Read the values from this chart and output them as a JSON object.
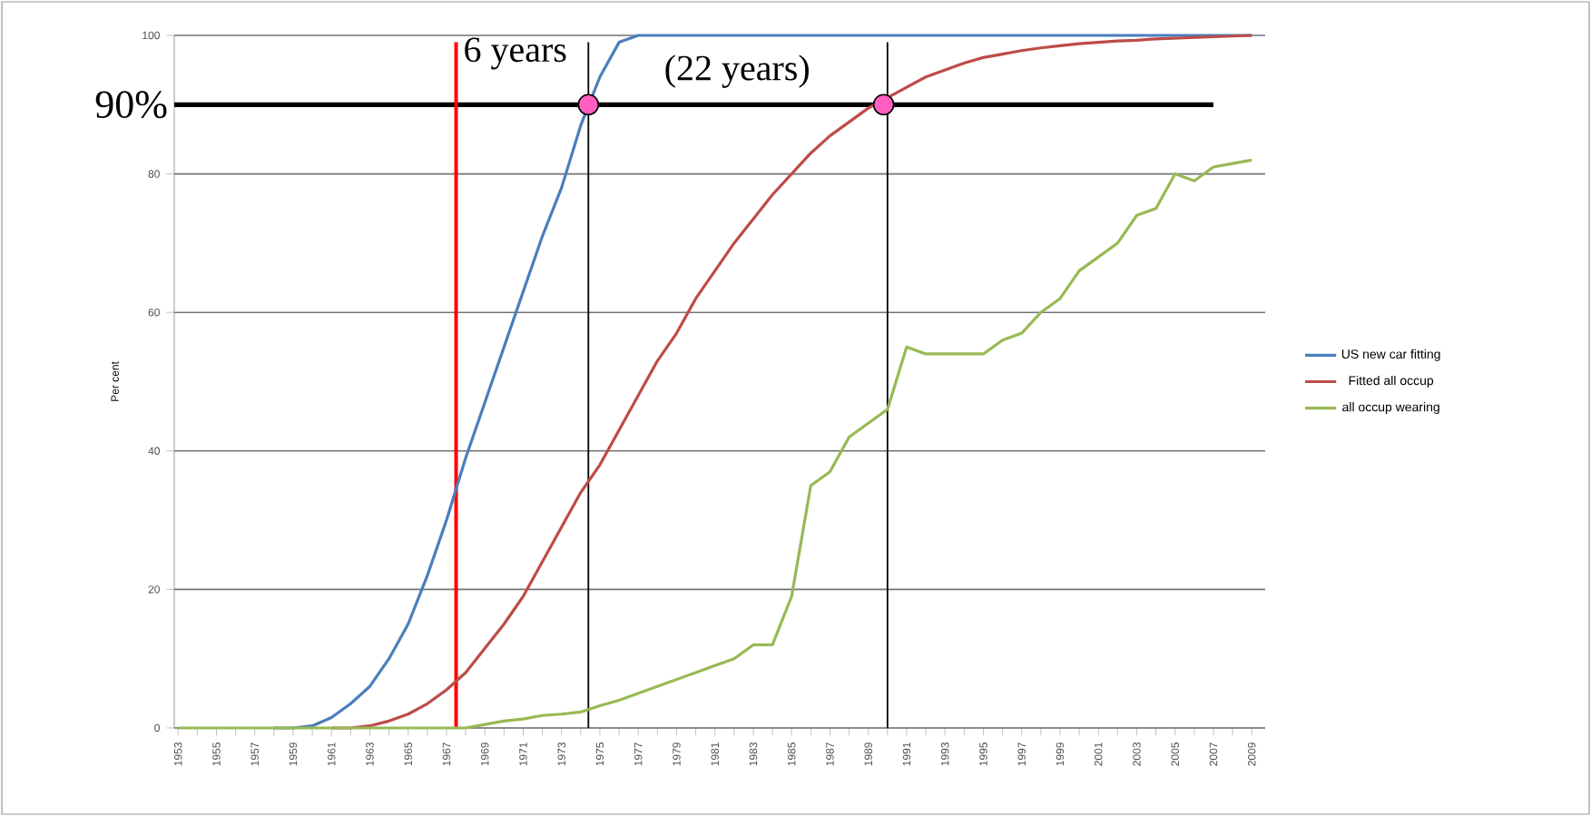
{
  "chart_data": {
    "type": "line",
    "ylabel": "Per cent",
    "x": [
      1953,
      1954,
      1955,
      1956,
      1957,
      1958,
      1959,
      1960,
      1961,
      1962,
      1963,
      1964,
      1965,
      1966,
      1967,
      1968,
      1969,
      1970,
      1971,
      1972,
      1973,
      1974,
      1975,
      1976,
      1977,
      1978,
      1979,
      1980,
      1981,
      1982,
      1983,
      1984,
      1985,
      1986,
      1987,
      1988,
      1989,
      1990,
      1991,
      1992,
      1993,
      1994,
      1995,
      1996,
      1997,
      1998,
      1999,
      2000,
      2001,
      2002,
      2003,
      2004,
      2005,
      2006,
      2007,
      2008,
      2009
    ],
    "series": [
      {
        "name": "US new car fitting",
        "color": "#4a7ebb",
        "values": [
          null,
          null,
          null,
          null,
          null,
          0,
          0,
          0.3,
          1.5,
          3.5,
          6,
          10,
          15,
          22,
          30,
          39,
          47,
          55,
          63,
          71,
          78,
          87,
          94,
          99,
          100,
          100,
          100,
          100,
          100,
          100,
          100,
          100,
          100,
          100,
          100,
          100,
          100,
          100,
          100,
          100,
          100,
          100,
          100,
          100,
          100,
          100,
          100,
          100,
          100,
          100,
          100,
          100,
          100,
          100,
          100,
          100,
          100
        ]
      },
      {
        "name": "Fitted all occup",
        "color": "#be4b48",
        "values": [
          null,
          null,
          null,
          null,
          null,
          null,
          null,
          null,
          0,
          0,
          0.3,
          1,
          2,
          3.5,
          5.5,
          8,
          11.5,
          15,
          19,
          24,
          29,
          34,
          38,
          43,
          48,
          53,
          57,
          62,
          66,
          70,
          73.5,
          77,
          80,
          83,
          85.5,
          87.5,
          89.5,
          91,
          92.5,
          94,
          95,
          96,
          96.8,
          97.3,
          97.8,
          98.2,
          98.5,
          98.8,
          99,
          99.2,
          99.3,
          99.5,
          99.6,
          99.7,
          99.8,
          99.9,
          100
        ]
      },
      {
        "name": "all occup wearing",
        "color": "#98b954",
        "values": [
          0,
          0,
          0,
          0,
          0,
          0,
          0,
          0,
          0,
          0,
          0,
          0,
          0,
          0,
          0,
          0,
          0.5,
          1,
          1.3,
          1.8,
          2,
          2.3,
          3.2,
          4,
          5,
          6,
          7,
          8,
          9,
          10,
          12,
          12,
          19,
          35,
          37,
          42,
          44,
          46,
          55,
          54,
          54,
          54,
          54,
          56,
          57,
          60,
          62,
          66,
          68,
          70,
          74,
          75,
          80,
          79,
          81,
          81.5,
          82
        ]
      },
      {
        "type": "scatter",
        "color": "#ff5fc0",
        "x": [
          1974.4,
          1989.8
        ],
        "values": [
          90,
          90
        ]
      }
    ],
    "xlim": [
      1952.8,
      2009.7
    ],
    "xticks": [
      1953,
      {
        "value": 1954,
        "label": null
      },
      1955,
      {
        "value": 1956,
        "label": null
      },
      1957,
      {
        "value": 1958,
        "label": null
      },
      1959,
      {
        "value": 1960,
        "label": null
      },
      1961,
      {
        "value": 1962,
        "label": null
      },
      1963,
      {
        "value": 1964,
        "label": null
      },
      1965,
      {
        "value": 1966,
        "label": null
      },
      1967,
      {
        "value": 1968,
        "label": null
      },
      1969,
      {
        "value": 1970,
        "label": null
      },
      1971,
      {
        "value": 1972,
        "label": null
      },
      1973,
      {
        "value": 1974,
        "label": null
      },
      1975,
      {
        "value": 1976,
        "label": null
      },
      1977,
      {
        "value": 1978,
        "label": null
      },
      1979,
      {
        "value": 1980,
        "label": null
      },
      1981,
      {
        "value": 1982,
        "label": null
      },
      1983,
      {
        "value": 1984,
        "label": null
      },
      1985,
      {
        "value": 1986,
        "label": null
      },
      1987,
      {
        "value": 1988,
        "label": null
      },
      1989,
      {
        "value": 1990,
        "label": null
      },
      1991,
      {
        "value": 1992,
        "label": null
      },
      1993,
      {
        "value": 1994,
        "label": null
      },
      1995,
      {
        "value": 1996,
        "label": null
      },
      1997,
      {
        "value": 1998,
        "label": null
      },
      1999,
      {
        "value": 2000,
        "label": null
      },
      2001,
      {
        "value": 2002,
        "label": null
      },
      2003,
      {
        "value": 2004,
        "label": null
      },
      2005,
      {
        "value": 2006,
        "label": null
      },
      2007,
      {
        "value": 2008,
        "label": null
      },
      2009
    ],
    "ylim": [
      0,
      100
    ],
    "yticks": [
      0,
      20,
      40,
      60,
      80,
      100
    ],
    "grid": "y",
    "legend": "right",
    "marker": "none",
    "line_style": "solid",
    "ref_lines": [
      {
        "axis": "y",
        "value": 90,
        "label": "90%",
        "color": "#000000"
      },
      {
        "axis": "x",
        "value": 1967.5,
        "color": "#ff0000"
      },
      {
        "axis": "x",
        "value": 1974.4,
        "color": "#000000"
      },
      {
        "axis": "x",
        "value": 1990,
        "color": "#000000"
      }
    ],
    "annotations": [
      "6 years",
      "(22 years)"
    ]
  }
}
